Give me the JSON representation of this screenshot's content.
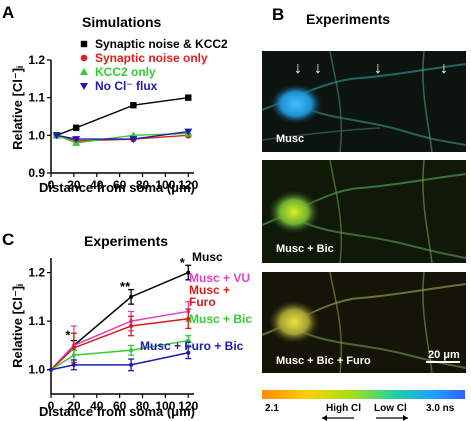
{
  "panels": {
    "a_letter": "A",
    "b_letter": "B",
    "c_letter": "C"
  },
  "chart_data": [
    {
      "id": "A",
      "type": "line",
      "title": "Simulations",
      "xlabel": "Distance from soma (μm)",
      "ylabel": "Relative [Cl⁻]ᵢ",
      "xlim": [
        0,
        125
      ],
      "ylim": [
        0.9,
        1.2
      ],
      "xticks": [
        0,
        20,
        40,
        60,
        80,
        100,
        120
      ],
      "yticks": [
        0.9,
        1.0,
        1.1,
        1.2
      ],
      "legend_position": "top-right",
      "series": [
        {
          "name": "Synaptic noise & KCC2",
          "color": "#000000",
          "marker": "square",
          "x": [
            5,
            22,
            72,
            120
          ],
          "y": [
            1.0,
            1.02,
            1.08,
            1.1
          ]
        },
        {
          "name": "Synaptic noise only",
          "color": "#e0201c",
          "marker": "circle",
          "x": [
            5,
            22,
            72,
            120
          ],
          "y": [
            1.0,
            0.985,
            0.99,
            1.0
          ]
        },
        {
          "name": "KCC2 only",
          "color": "#33cc33",
          "marker": "triangle-up",
          "x": [
            5,
            22,
            72,
            120
          ],
          "y": [
            1.0,
            0.98,
            1.0,
            1.005
          ]
        },
        {
          "name": "No Cl⁻ flux",
          "color": "#1b1bb0",
          "marker": "triangle-down",
          "x": [
            5,
            22,
            72,
            120
          ],
          "y": [
            1.0,
            0.99,
            0.99,
            1.01
          ]
        }
      ]
    },
    {
      "id": "C",
      "type": "line",
      "title": "Experiments",
      "xlabel": "Distance from soma (μm)",
      "ylabel": "Relative [Cl⁻]ᵢ",
      "xlim": [
        0,
        125
      ],
      "ylim": [
        0.95,
        1.23
      ],
      "xticks": [
        0,
        20,
        40,
        60,
        80,
        100,
        120
      ],
      "yticks": [
        1.0,
        1.1,
        1.2
      ],
      "series": [
        {
          "name": "Musc",
          "color": "#000000",
          "x": [
            0,
            20,
            70,
            120
          ],
          "y": [
            1.0,
            1.05,
            1.15,
            1.2
          ],
          "err": [
            0.0,
            0.01,
            0.015,
            0.015
          ]
        },
        {
          "name": "Musc + VU",
          "color": "#e23fbf",
          "x": [
            0,
            20,
            70,
            120
          ],
          "y": [
            1.0,
            1.05,
            1.1,
            1.12
          ],
          "err": [
            0.0,
            0.04,
            0.02,
            0.02
          ]
        },
        {
          "name": "Musc + Furo",
          "color": "#d41c1c",
          "x": [
            0,
            20,
            70,
            120
          ],
          "y": [
            1.0,
            1.045,
            1.09,
            1.105
          ],
          "err": [
            0.0,
            0.03,
            0.02,
            0.02
          ]
        },
        {
          "name": "Musc + Bic",
          "color": "#33cc33",
          "x": [
            0,
            20,
            70,
            120
          ],
          "y": [
            1.0,
            1.03,
            1.04,
            1.06
          ],
          "err": [
            0.0,
            0.01,
            0.01,
            0.01
          ]
        },
        {
          "name": "Musc + Furo + Bic",
          "color": "#1b1bb0",
          "x": [
            0,
            20,
            70,
            120
          ],
          "y": [
            1.0,
            1.01,
            1.01,
            1.035
          ],
          "err": [
            0.0,
            0.01,
            0.012,
            0.012
          ]
        }
      ],
      "annotations": [
        {
          "text": "*",
          "x": 20,
          "y": 1.07
        },
        {
          "text": "**",
          "x": 70,
          "y": 1.17
        },
        {
          "text": "*",
          "x": 120,
          "y": 1.22
        }
      ],
      "labels": {
        "musc": "Musc",
        "vu": "Musc + VU",
        "furo_1": "Musc +",
        "furo_2": "Furo",
        "bic": "Musc + Bic",
        "furobic": "Musc + Furo + Bic"
      }
    }
  ],
  "experiments_panel": {
    "title": "Experiments",
    "image_labels": [
      "Musc",
      "Musc + Bic",
      "Musc + Bic + Furo"
    ],
    "scale_bar": "20 μm",
    "colorbar": {
      "left_value": "2.1",
      "right_value": "3.0 ns",
      "high_label": "High Cl",
      "low_label": "Low Cl"
    },
    "colors": {
      "colorbar_stops": [
        "#ff8c00",
        "#ffd000",
        "#a0e020",
        "#20d0a0",
        "#20a0ff",
        "#3060ff"
      ]
    }
  }
}
